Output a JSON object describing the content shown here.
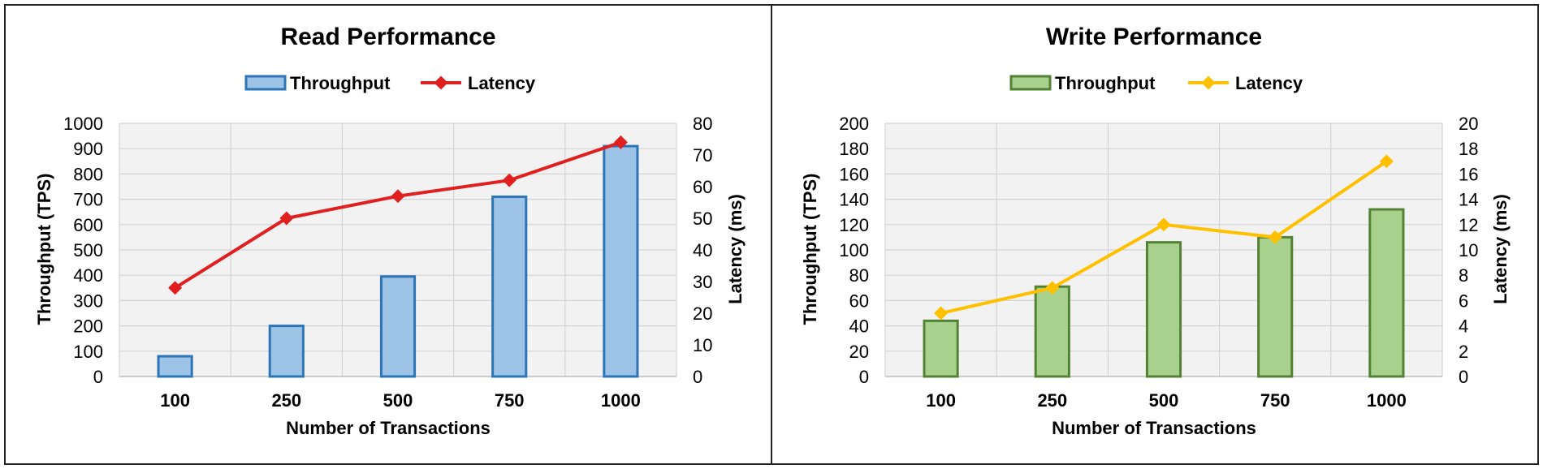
{
  "chart_data": [
    {
      "type": "bar",
      "title": "Read Performance",
      "categories": [
        "100",
        "250",
        "500",
        "750",
        "1000"
      ],
      "xlabel": "Number of Transactions",
      "ylabel": "Throughput (TPS)",
      "y2label": "Latency (ms)",
      "ylim": [
        0,
        1000
      ],
      "ystep": 100,
      "y2lim": [
        0,
        80
      ],
      "y2step": 10,
      "grid": true,
      "legend_position": "top-center",
      "series": [
        {
          "name": "Throughput",
          "kind": "bar",
          "axis": "left",
          "values": [
            80,
            200,
            395,
            710,
            910
          ],
          "fill": "#9dc3e6",
          "stroke": "#2e75b6"
        },
        {
          "name": "Latency",
          "kind": "line",
          "axis": "right",
          "values": [
            28,
            50,
            57,
            62,
            74
          ],
          "color": "#e02020"
        }
      ]
    },
    {
      "type": "bar",
      "title": "Write Performance",
      "categories": [
        "100",
        "250",
        "500",
        "750",
        "1000"
      ],
      "xlabel": "Number of Transactions",
      "ylabel": "Throughput (TPS)",
      "y2label": "Latency (ms)",
      "ylim": [
        0,
        200
      ],
      "ystep": 20,
      "y2lim": [
        0,
        20
      ],
      "y2step": 2,
      "grid": true,
      "legend_position": "top-center",
      "series": [
        {
          "name": "Throughput",
          "kind": "bar",
          "axis": "left",
          "values": [
            44,
            71,
            106,
            110,
            132
          ],
          "fill": "#a9d18e",
          "stroke": "#548235"
        },
        {
          "name": "Latency",
          "kind": "line",
          "axis": "right",
          "values": [
            5,
            7,
            12,
            11,
            17
          ],
          "color": "#ffc000"
        }
      ]
    }
  ]
}
